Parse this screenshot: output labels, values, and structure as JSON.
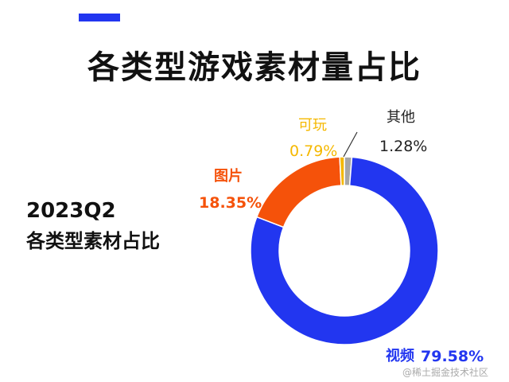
{
  "header": {
    "title": "各类型游戏素材量占比"
  },
  "subtitle": {
    "period": "2023Q2",
    "description": "各类型素材占比"
  },
  "watermark": "@稀土掘金技术社区",
  "colors": {
    "accent": "#2236f0",
    "video": "#2236f0",
    "image": "#f5520a",
    "playable": "#f5b800",
    "other": "#a6a6a6"
  },
  "chart_data": {
    "type": "pie",
    "variant": "donut",
    "title": "各类型游戏素材量占比",
    "categories": [
      "视频",
      "图片",
      "可玩",
      "其他"
    ],
    "values": [
      79.58,
      18.35,
      0.79,
      1.28
    ],
    "value_labels": [
      "79.58%",
      "18.35%",
      "0.79%",
      "1.28%"
    ],
    "start": "top, clockwise from 其他 to 视频"
  }
}
